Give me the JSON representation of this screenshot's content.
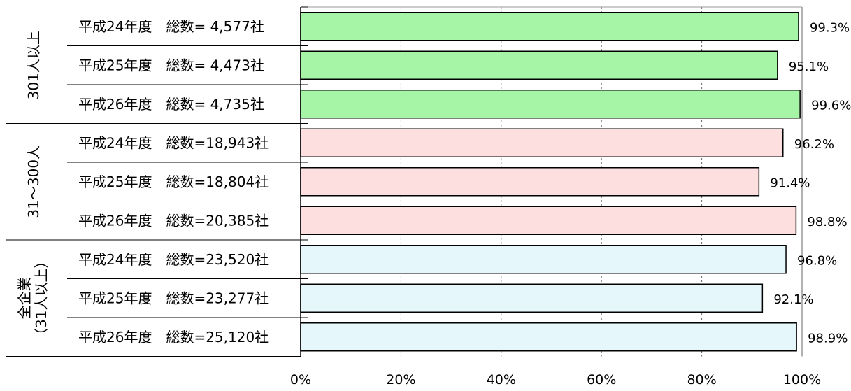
{
  "chart_data": {
    "type": "bar",
    "orientation": "horizontal",
    "groups": [
      {
        "name": "301人以上",
        "color": "#a6f5a6",
        "rows": [
          {
            "label": "平成24年度　総数=  4,577社",
            "value": 99.3,
            "value_label": "99.3%"
          },
          {
            "label": "平成25年度　総数=  4,473社",
            "value": 95.1,
            "value_label": "95.1%"
          },
          {
            "label": "平成26年度　総数=  4,735社",
            "value": 99.6,
            "value_label": "99.6%"
          }
        ]
      },
      {
        "name": "31～300人",
        "color": "#fddfdf",
        "rows": [
          {
            "label": "平成24年度　総数=18,943社",
            "value": 96.2,
            "value_label": "96.2%"
          },
          {
            "label": "平成25年度　総数=18,804社",
            "value": 91.4,
            "value_label": "91.4%"
          },
          {
            "label": "平成26年度　総数=20,385社",
            "value": 98.8,
            "value_label": "98.8%"
          }
        ]
      },
      {
        "name": "全企業（31人以上）",
        "name_lines": [
          "全企業",
          "（31人以上）"
        ],
        "color": "#e6f7fb",
        "rows": [
          {
            "label": "平成24年度　総数=23,520社",
            "value": 96.8,
            "value_label": "96.8%"
          },
          {
            "label": "平成25年度　総数=23,277社",
            "value": 92.1,
            "value_label": "92.1%"
          },
          {
            "label": "平成26年度　総数=25,120社",
            "value": 98.9,
            "value_label": "98.9%"
          }
        ]
      }
    ],
    "xlim": [
      0,
      100
    ],
    "xticks": [
      0,
      20,
      40,
      60,
      80,
      100
    ],
    "xtick_labels": [
      "0%",
      "20%",
      "40%",
      "60%",
      "80%",
      "100%"
    ],
    "grid": "vertical-dashed",
    "legend": "none"
  }
}
